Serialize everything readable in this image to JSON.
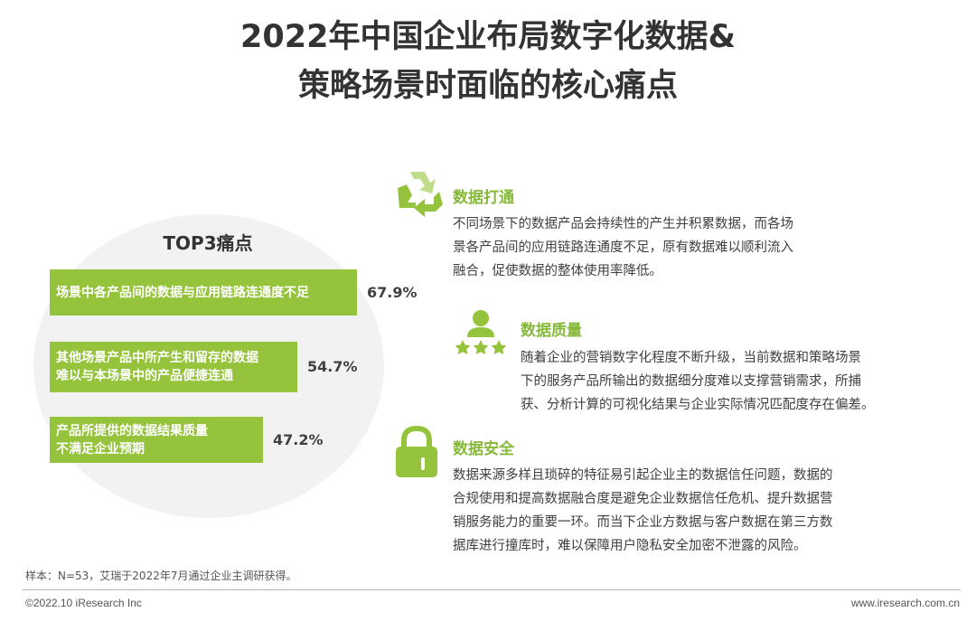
{
  "title": {
    "line1": "2022年中国企业布局数字化数据&",
    "line2": "策略场景时面临的核心痛点"
  },
  "colors": {
    "accent": "#95c43c",
    "accent_text": "#86b83a",
    "background_circle": "#f2f2f2",
    "icon_light": "#bfdc89"
  },
  "chart_data": {
    "type": "bar",
    "orientation": "horizontal",
    "title": "TOP3痛点",
    "unit": "%",
    "categories": [
      "场景中各产品间的数据与应用链路连通度不足",
      "其他场景产品中所产生和留存的数据\n难以与本场景中的产品便捷连通",
      "产品所提供的数据结果质量\n不满足企业预期"
    ],
    "values": [
      67.9,
      54.7,
      47.2
    ],
    "value_labels": [
      "67.9%",
      "54.7%",
      "47.2%"
    ],
    "legend": "none",
    "grid": false
  },
  "points": [
    {
      "icon": "recycle-arrows-icon",
      "title": "数据打通",
      "desc": "不同场景下的数据产品会持续性的产生并积累数据，而各场\n景各产品间的应用链路连通度不足，原有数据难以顺利流入\n融合，促使数据的整体使用率降低。"
    },
    {
      "icon": "person-rating-icon",
      "title": "数据质量",
      "desc": "随着企业的营销数字化程度不断升级，当前数据和策略场景\n下的服务产品所输出的数据细分度难以支撑营销需求，所捕\n获、分析计算的可视化结果与企业实际情况匹配度存在偏差。"
    },
    {
      "icon": "padlock-icon",
      "title": "数据安全",
      "desc": "数据来源多样且琐碎的特征易引起企业主的数据信任问题，数据的\n合规使用和提高数据融合度是避免企业数据信任危机、提升数据营\n销服务能力的重要一环。而当下企业方数据与客户数据在第三方数\n据库进行撞库时，难以保障用户隐私安全加密不泄露的风险。"
    }
  ],
  "footnote": "样本：N=53，艾瑞于2022年7月通过企业主调研获得。",
  "footer": {
    "copyright": "©2022.10 iResearch Inc",
    "website": "www.iresearch.com.cn"
  }
}
